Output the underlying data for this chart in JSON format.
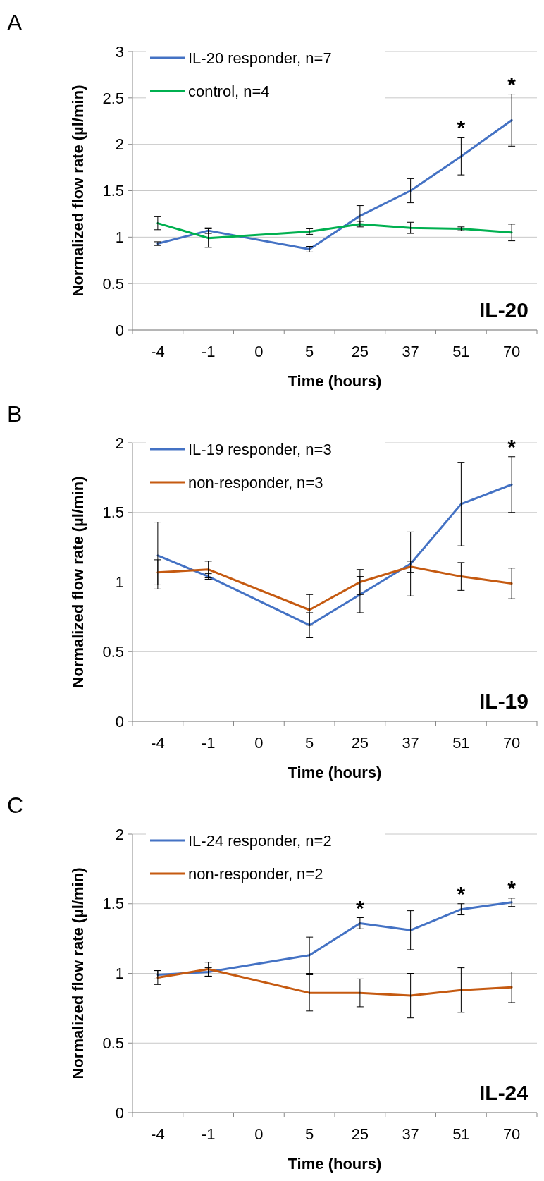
{
  "chart_data": [
    {
      "type": "line",
      "title": "A",
      "xlabel": "Time (hours)",
      "ylabel": "Normalized flow rate (µl/min)",
      "categories": [
        "-4",
        "-1",
        "0",
        "5",
        "25",
        "37",
        "51",
        "70"
      ],
      "ylim": [
        0,
        3
      ],
      "yticks": [
        0,
        0.5,
        1,
        1.5,
        2,
        2.5,
        3
      ],
      "grid": "y",
      "legend": "top left",
      "marker": "none",
      "line_style": "solid",
      "series": [
        {
          "name": "IL-20 responder, n=7",
          "color": "#4472c4",
          "values": [
            0.93,
            1.07,
            null,
            0.87,
            1.23,
            1.5,
            1.87,
            2.26
          ],
          "errors": [
            0.02,
            0.03,
            null,
            0.03,
            0.11,
            0.13,
            0.2,
            0.28
          ]
        },
        {
          "name": "control, n=4",
          "color": "#00b050",
          "values": [
            1.15,
            0.99,
            null,
            1.06,
            1.14,
            1.1,
            1.09,
            1.05
          ],
          "errors": [
            0.07,
            0.1,
            null,
            0.03,
            0.03,
            0.06,
            0.02,
            0.09
          ]
        }
      ],
      "annotations": [
        "IL-20",
        {
          "text": "*",
          "x": "51",
          "y": 1.87
        },
        {
          "text": "*",
          "x": "70",
          "y": 2.26
        }
      ]
    },
    {
      "type": "line",
      "title": "B",
      "xlabel": "Time (hours)",
      "ylabel": "Normalized flow rate (µl/min)",
      "categories": [
        "-4",
        "-1",
        "0",
        "5",
        "25",
        "37",
        "51",
        "70"
      ],
      "ylim": [
        0,
        2
      ],
      "yticks": [
        0,
        0.5,
        1,
        1.5,
        2
      ],
      "grid": "y",
      "legend": "top left",
      "marker": "none",
      "line_style": "solid",
      "series": [
        {
          "name": "IL-19 responder, n=3",
          "color": "#4472c4",
          "values": [
            1.19,
            1.04,
            null,
            0.69,
            0.91,
            1.13,
            1.56,
            1.7
          ],
          "errors": [
            0.24,
            0.02,
            null,
            0.09,
            0.13,
            0.23,
            0.3,
            0.2
          ]
        },
        {
          "name": "non-responder, n=3",
          "color": "#c55a11",
          "values": [
            1.07,
            1.09,
            null,
            0.8,
            1.0,
            1.11,
            1.04,
            0.99
          ],
          "errors": [
            0.09,
            0.06,
            null,
            0.11,
            0.09,
            0.04,
            0.1,
            0.11
          ]
        }
      ],
      "annotations": [
        "IL-19",
        {
          "text": "*",
          "x": "70",
          "y": 1.7
        }
      ]
    },
    {
      "type": "line",
      "title": "C",
      "xlabel": "Time (hours)",
      "ylabel": "Normalized flow rate (µl/min)",
      "categories": [
        "-4",
        "-1",
        "0",
        "5",
        "25",
        "37",
        "51",
        "70"
      ],
      "ylim": [
        0,
        2
      ],
      "yticks": [
        0,
        0.5,
        1,
        1.5,
        2
      ],
      "grid": "y",
      "legend": "top left",
      "marker": "none",
      "line_style": "solid",
      "series": [
        {
          "name": "IL-24 responder, n=2",
          "color": "#4472c4",
          "values": [
            0.99,
            1.01,
            null,
            1.13,
            1.36,
            1.31,
            1.46,
            1.51
          ],
          "errors": [
            0.03,
            0.03,
            null,
            0.13,
            0.04,
            0.14,
            0.04,
            0.03
          ]
        },
        {
          "name": "non-responder, n=2",
          "color": "#c55a11",
          "values": [
            0.97,
            1.03,
            null,
            0.86,
            0.86,
            0.84,
            0.88,
            0.9
          ],
          "errors": [
            0.05,
            0.05,
            null,
            0.13,
            0.1,
            0.16,
            0.16,
            0.11
          ]
        }
      ],
      "annotations": [
        "IL-24",
        {
          "text": "*",
          "x": "25",
          "y": 1.36
        },
        {
          "text": "*",
          "x": "51",
          "y": 1.46
        },
        {
          "text": "*",
          "x": "70",
          "y": 1.51
        }
      ]
    }
  ]
}
